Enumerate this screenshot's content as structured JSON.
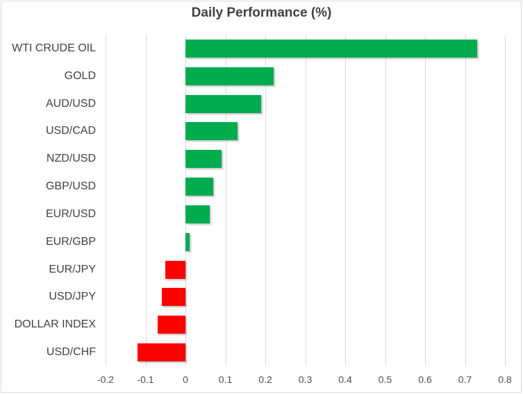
{
  "chart_data": {
    "type": "bar",
    "orientation": "horizontal",
    "title": "Daily Performance (%)",
    "xlabel": "",
    "ylabel": "",
    "categories": [
      "WTI CRUDE OIL",
      "GOLD",
      "AUD/USD",
      "USD/CAD",
      "NZD/USD",
      "GBP/USD",
      "EUR/USD",
      "EUR/GBP",
      "EUR/JPY",
      "USD/JPY",
      "DOLLAR INDEX",
      "USD/CHF"
    ],
    "values": [
      0.73,
      0.22,
      0.19,
      0.13,
      0.09,
      0.07,
      0.06,
      0.01,
      -0.05,
      -0.06,
      -0.07,
      -0.12
    ],
    "xlim": [
      -0.2,
      0.8
    ],
    "x_ticks": [
      -0.2,
      -0.1,
      0,
      0.1,
      0.2,
      0.3,
      0.4,
      0.5,
      0.6,
      0.7,
      0.8
    ],
    "x_tick_labels": [
      "-0.2",
      "-0.1",
      "0",
      "0.1",
      "0.2",
      "0.3",
      "0.4",
      "0.5",
      "0.6",
      "0.7",
      "0.8"
    ],
    "grid": true,
    "legend": "none",
    "colors": {
      "positive": "#00ac4e",
      "negative": "#ff0000",
      "gridline": "#d9d9d9",
      "title_text": "#404040",
      "category_text": "#404040",
      "tick_text": "#4d4d4d",
      "border": "#d9d9d9",
      "background": "#ffffff"
    }
  }
}
